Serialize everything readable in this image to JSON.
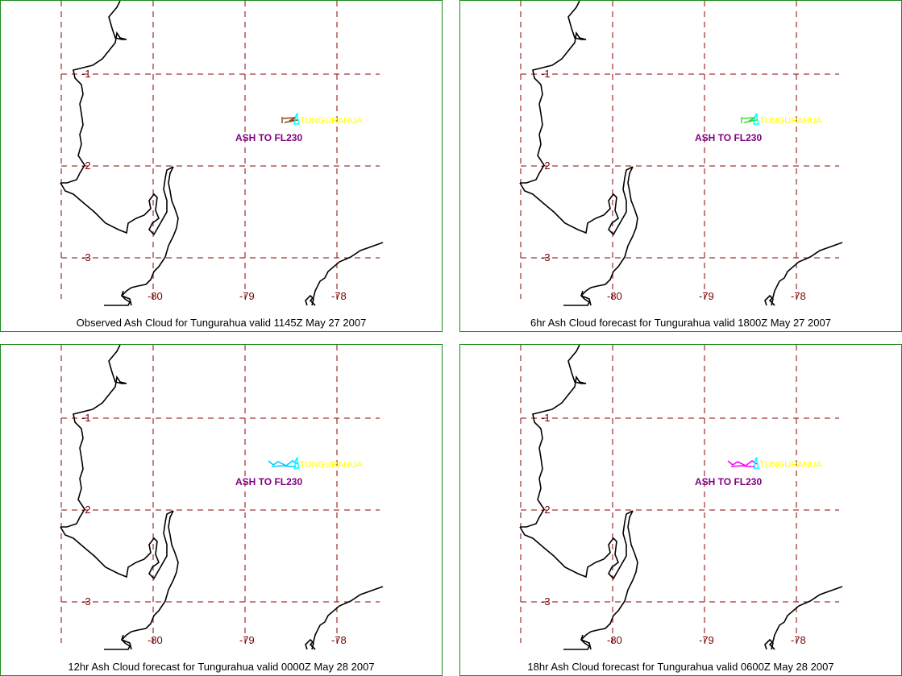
{
  "common": {
    "lat_labels": [
      "-1",
      "-2",
      "-3"
    ],
    "lon_labels": [
      "-80",
      "-79",
      "-78"
    ],
    "volcano": "TUNGURAHUA",
    "ash_label": "ASH TO FL230",
    "colors": {
      "grid": "#8b0000",
      "coast": "#000000",
      "volcano_label": "#ffff00",
      "ash_label": "#800080",
      "frame": "#1a8a1a"
    }
  },
  "panels": [
    {
      "caption": "Observed Ash Cloud for Tungurahua valid 1145Z May 27 2007",
      "plume_color": "#8b4513",
      "plume_length": "short",
      "symbol_color": "#00ffff"
    },
    {
      "caption": "6hr Ash Cloud forecast for Tungurahua valid 1800Z May 27 2007",
      "plume_color": "#33dd33",
      "plume_length": "short",
      "symbol_color": "#00ffff"
    },
    {
      "caption": "12hr Ash Cloud forecast for Tungurahua valid 0000Z May 28 2007",
      "plume_color": "#00ccff",
      "plume_length": "long",
      "symbol_color": "#00ffff"
    },
    {
      "caption": "18hr Ash Cloud forecast for Tungurahua valid 0600Z May 28 2007",
      "plume_color": "#ff00ff",
      "plume_length": "long",
      "symbol_color": "#00ffff"
    }
  ]
}
